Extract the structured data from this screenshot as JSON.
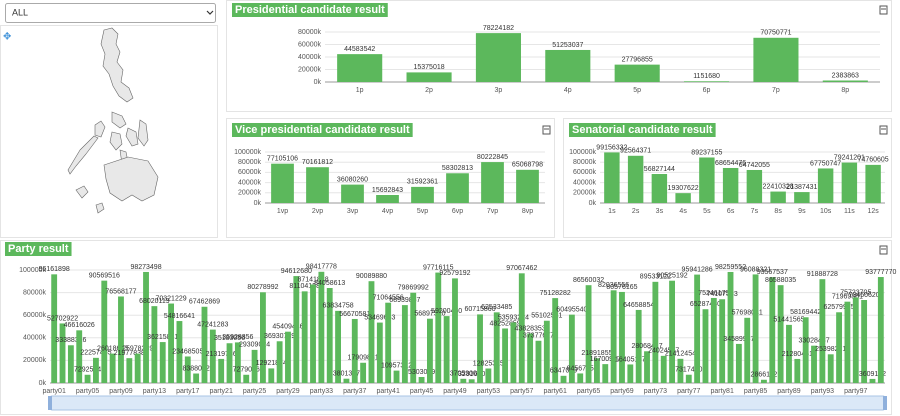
{
  "filter": {
    "selected": "ALL"
  },
  "chart_data": [
    {
      "type": "bar",
      "title": "Presidential candidate result",
      "color": "#5cb85c",
      "categories": [
        "1p",
        "2p",
        "3p",
        "4p",
        "5p",
        "6p",
        "7p",
        "8p"
      ],
      "values": [
        44583542,
        15375018,
        78224182,
        51253037,
        27796855,
        1151680,
        70750771,
        2383863
      ],
      "ylim": [
        0,
        80000000
      ],
      "yticks": [
        {
          "value": 0,
          "label": "0k"
        },
        {
          "value": 20000000,
          "label": "20000k"
        },
        {
          "value": 40000000,
          "label": "40000k"
        },
        {
          "value": 60000000,
          "label": "60000k"
        },
        {
          "value": 80000000,
          "label": "80000k"
        }
      ]
    },
    {
      "type": "bar",
      "title": "Vice presidential candidate result",
      "color": "#5cb85c",
      "categories": [
        "1vp",
        "2vp",
        "3vp",
        "4vp",
        "5vp",
        "6vp",
        "7vp",
        "8vp"
      ],
      "values": [
        77105106,
        70161812,
        36080260,
        15692843,
        31592361,
        58302813,
        80222845,
        65068798
      ],
      "ylim": [
        0,
        100000000
      ],
      "yticks": [
        {
          "value": 0,
          "label": "0k"
        },
        {
          "value": 20000000,
          "label": "20000k"
        },
        {
          "value": 40000000,
          "label": "40000k"
        },
        {
          "value": 60000000,
          "label": "60000k"
        },
        {
          "value": 80000000,
          "label": "80000k"
        },
        {
          "value": 100000000,
          "label": "100000k"
        }
      ]
    },
    {
      "type": "bar",
      "title": "Senatorial candidate result",
      "color": "#5cb85c",
      "categories": [
        "1s",
        "2s",
        "3s",
        "4s",
        "5s",
        "6s",
        "7s",
        "8s",
        "9s",
        "10s",
        "11s",
        "12s"
      ],
      "values": [
        99156332,
        92564371,
        56827144,
        19307622,
        89237155,
        68654476,
        64742055,
        22410328,
        21387431,
        67750747,
        79241201,
        74760605
      ],
      "ylim": [
        0,
        100000000
      ],
      "yticks": [
        {
          "value": 0,
          "label": "0k"
        },
        {
          "value": 20000000,
          "label": "20000k"
        },
        {
          "value": 40000000,
          "label": "40000k"
        },
        {
          "value": 60000000,
          "label": "60000k"
        },
        {
          "value": 80000000,
          "label": "80000k"
        },
        {
          "value": 100000000,
          "label": "100000k"
        }
      ]
    },
    {
      "type": "bar",
      "title": "Party result",
      "color": "#5cb85c",
      "categories": [
        "party01",
        null,
        null,
        null,
        "party05",
        null,
        null,
        null,
        "party09",
        null,
        null,
        null,
        "party13",
        null,
        null,
        null,
        "party17",
        null,
        null,
        null,
        "party21",
        null,
        null,
        null,
        "party25",
        null,
        null,
        null,
        "party29",
        null,
        null,
        null,
        "party33",
        null,
        null,
        null,
        "party37",
        null,
        null,
        null,
        "party41",
        null,
        null,
        null,
        "party45",
        null,
        null,
        null,
        "party49",
        null,
        null,
        null,
        "party53",
        null,
        null,
        null,
        "party57",
        null,
        null,
        null,
        "party61",
        null,
        null,
        null,
        "party65",
        null,
        null,
        null,
        "party69",
        null,
        null,
        null,
        "party73",
        null,
        null,
        null,
        "party77",
        null,
        null,
        null,
        "party81",
        null,
        null,
        null,
        "party85",
        null,
        null,
        null,
        "party89",
        null,
        null,
        null,
        "party93",
        null,
        null,
        null,
        "party97",
        null,
        null,
        null
      ],
      "values": [
        96161898,
        52702922,
        33388316,
        46616026,
        7292524,
        22257455,
        90569516,
        26018623,
        76568177,
        21977838,
        25978239,
        98273498,
        68020119,
        36215881,
        70321229,
        54816641,
        23468505,
        8388062,
        67462869,
        47241283,
        21319786,
        35183056,
        35928356,
        7279036,
        29309024,
        80278992,
        12921874,
        36930739,
        45409446,
        94612680,
        81104158,
        87141828,
        98417778,
        84058613,
        63834758,
        3801367,
        56670581,
        17909881,
        90089880,
        53469663,
        71064556,
        10957312,
        68939867,
        79869992,
        5303049,
        56897510,
        97716115,
        59200460,
        92579192,
        3705300,
        3281640,
        60715860,
        12825315,
        62533485,
        48252859,
        53593224,
        97067462,
        43828353,
        37377677,
        55102531,
        75128282,
        6347039,
        60495540,
        8456735,
        86560032,
        21891855,
        16700907,
        82036556,
        80576165,
        16405117,
        64658854,
        28068417,
        89533122,
        24024567,
        90525192,
        21412454,
        7317400,
        95941286,
        65287440,
        75246179,
        74107183,
        98259552,
        34589947,
        57698041,
        96088321,
        2866112,
        93567537,
        86588035,
        51441565,
        21280461,
        58169442,
        33028437,
        91888728,
        25398271,
        62579975,
        71969881,
        75723705,
        73450620,
        3609162,
        93777770
      ],
      "ylim": [
        0,
        100000000
      ],
      "yticks": [
        {
          "value": 0,
          "label": "0k"
        },
        {
          "value": 20000000,
          "label": "20000k"
        },
        {
          "value": 40000000,
          "label": "40000k"
        },
        {
          "value": 60000000,
          "label": "60000k"
        },
        {
          "value": 80000000,
          "label": "80000k"
        },
        {
          "value": 100000000,
          "label": "100000k"
        }
      ]
    }
  ]
}
